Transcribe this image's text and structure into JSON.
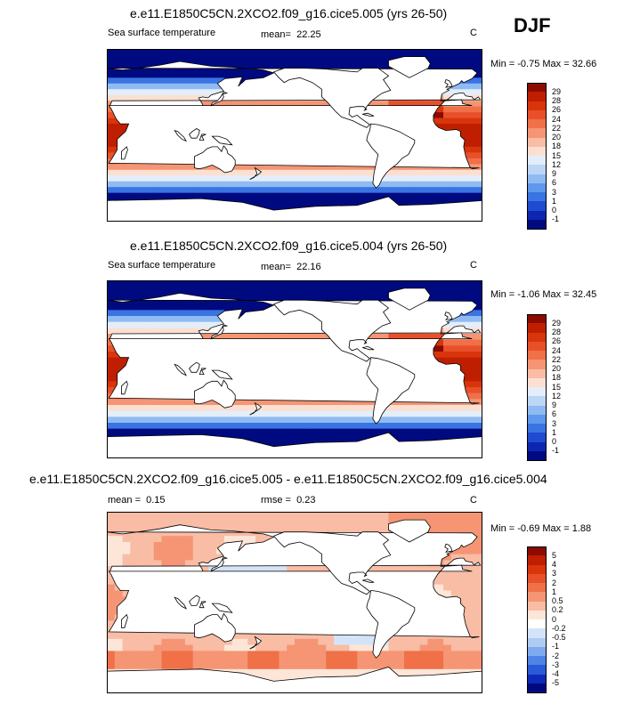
{
  "season": "DJF",
  "chart_data": [
    {
      "type": "map",
      "title": "e.e11.E1850C5CN.2XCO2.f09_g16.cice5.005 (yrs 26-50)",
      "variable": "Sea surface temperature",
      "mean_label": "mean=",
      "mean": "22.25",
      "units": "C",
      "range_text": "Min =  -0.75 Max =  32.66",
      "min": -0.75,
      "max": 32.66,
      "colorbar": {
        "labels": [
          "29",
          "28",
          "26",
          "24",
          "22",
          "20",
          "18",
          "15",
          "12",
          "9",
          "6",
          "3",
          "1",
          "0",
          "-1"
        ],
        "colors": [
          "#8c0a00",
          "#bf1f00",
          "#d8350c",
          "#e8502a",
          "#f07048",
          "#f59574",
          "#f9bca4",
          "#fbe0d2",
          "#e3eefa",
          "#bcd6f6",
          "#8fbbf2",
          "#5f98ec",
          "#3a73e2",
          "#1e4bd2",
          "#0d26b0",
          "#000a80"
        ]
      },
      "pattern": "sst"
    },
    {
      "type": "map",
      "title": "e.e11.E1850C5CN.2XCO2.f09_g16.cice5.004 (yrs 26-50)",
      "variable": "Sea surface temperature",
      "mean_label": "mean=",
      "mean": "22.16",
      "units": "C",
      "range_text": "Min =  -1.06 Max =  32.45",
      "min": -1.06,
      "max": 32.45,
      "colorbar": {
        "labels": [
          "29",
          "28",
          "26",
          "24",
          "22",
          "20",
          "18",
          "15",
          "12",
          "9",
          "6",
          "3",
          "1",
          "0",
          "-1"
        ],
        "colors": [
          "#8c0a00",
          "#bf1f00",
          "#d8350c",
          "#e8502a",
          "#f07048",
          "#f59574",
          "#f9bca4",
          "#fbe0d2",
          "#e3eefa",
          "#bcd6f6",
          "#8fbbf2",
          "#5f98ec",
          "#3a73e2",
          "#1e4bd2",
          "#0d26b0",
          "#000a80"
        ]
      },
      "pattern": "sst"
    },
    {
      "type": "map",
      "title": "e.e11.E1850C5CN.2XCO2.f09_g16.cice5.005 - e.e11.E1850C5CN.2XCO2.f09_g16.cice5.004",
      "mean_label": "mean =",
      "mean": "0.15",
      "rmse_label": "rmse =",
      "rmse": "0.23",
      "units": "C",
      "range_text": "Min =  -0.69 Max =  1.88",
      "min": -0.69,
      "max": 1.88,
      "colorbar": {
        "labels": [
          "5",
          "4",
          "3",
          "2",
          "1",
          "0.5",
          "0.2",
          "0",
          "-0.2",
          "-0.5",
          "-1",
          "-2",
          "-3",
          "-4",
          "-5"
        ],
        "colors": [
          "#8c0a00",
          "#bf1f00",
          "#d8350c",
          "#e8502a",
          "#f07048",
          "#f59574",
          "#f9bca4",
          "#fde6d8",
          "#ffffff",
          "#d4e4f8",
          "#aecbf2",
          "#7faaee",
          "#4f83e6",
          "#2a5ad8",
          "#0d2ab8",
          "#000a80"
        ]
      },
      "pattern": "diff"
    }
  ]
}
